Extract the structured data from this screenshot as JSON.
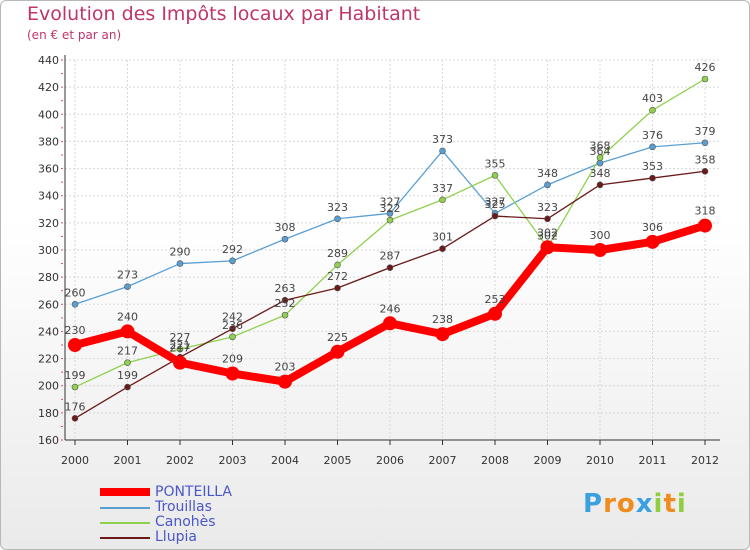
{
  "chart_data": {
    "type": "line",
    "title": "Evolution des Impôts locaux par Habitant",
    "subtitle": "(en € et par an)",
    "xlabel": "",
    "ylabel": "",
    "ylim": [
      160,
      440
    ],
    "y_ticks": [
      160,
      180,
      200,
      220,
      240,
      260,
      280,
      300,
      320,
      340,
      360,
      380,
      400,
      420,
      440
    ],
    "categories": [
      "2000",
      "2001",
      "2002",
      "2003",
      "2004",
      "2005",
      "2006",
      "2007",
      "2008",
      "2009",
      "2010",
      "2011",
      "2012"
    ],
    "grid": true,
    "legend_position": "bottom-left",
    "series": [
      {
        "name": "PONTEILLA",
        "color": "#ff0000",
        "values": [
          230,
          240,
          217,
          209,
          203,
          225,
          246,
          238,
          253,
          302,
          300,
          306,
          318
        ]
      },
      {
        "name": "Trouillas",
        "color": "#5a9fd4",
        "values": [
          260,
          273,
          290,
          292,
          308,
          323,
          327,
          373,
          327,
          348,
          364,
          376,
          379
        ]
      },
      {
        "name": "Canohès",
        "color": "#8fd14f",
        "values": [
          199,
          217,
          227,
          236,
          252,
          289,
          322,
          337,
          355,
          302,
          368,
          403,
          426
        ]
      },
      {
        "name": "Llupia",
        "color": "#6b1a1a",
        "values": [
          176,
          199,
          221,
          242,
          263,
          272,
          287,
          301,
          325,
          323,
          348,
          353,
          358
        ]
      }
    ]
  },
  "logo": {
    "letters": [
      "P",
      "r",
      "o",
      "x",
      "i",
      "t",
      "i"
    ],
    "colors": [
      "#3aa0e0",
      "#f08c1e",
      "#f08c1e",
      "#3aa0e0",
      "#8fce3e",
      "#f08c1e",
      "#8fce3e"
    ]
  }
}
